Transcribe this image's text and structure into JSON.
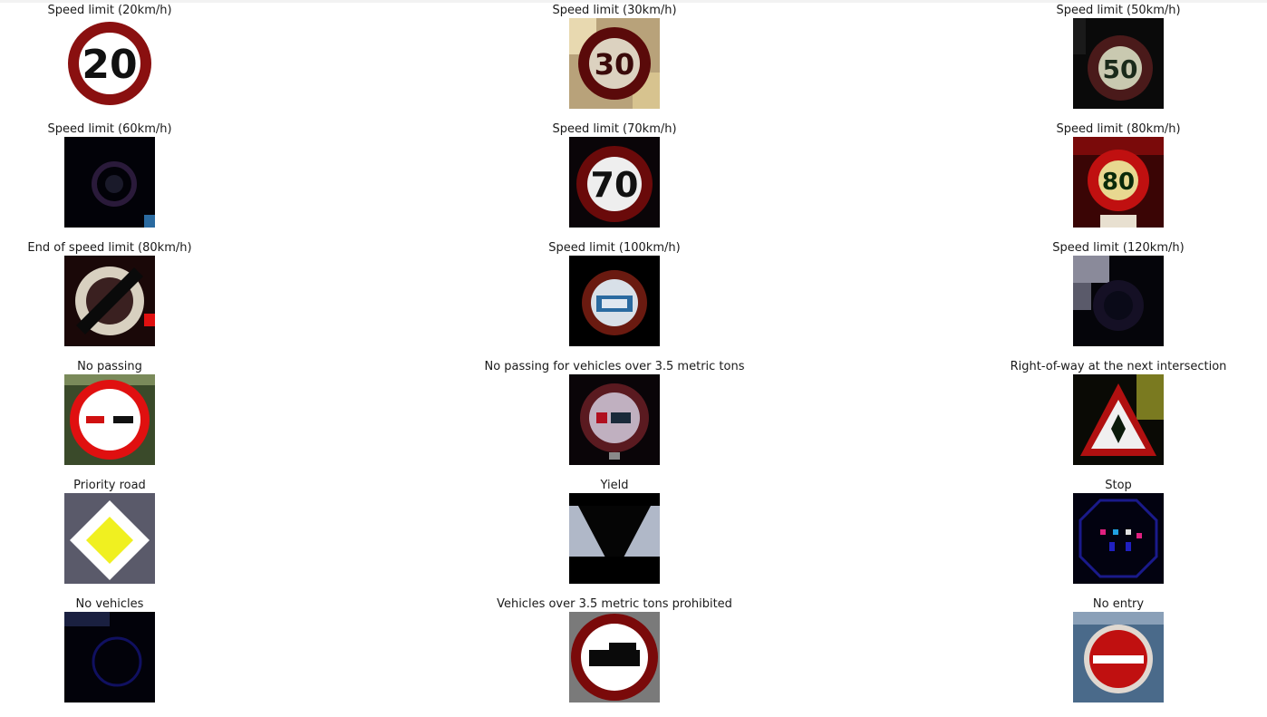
{
  "samples": [
    {
      "label": "Speed limit (20km/h)",
      "icon": "speed-limit-20-sign-icon",
      "sign_text": "20"
    },
    {
      "label": "Speed limit (30km/h)",
      "icon": "speed-limit-30-sign-icon",
      "sign_text": "30"
    },
    {
      "label": "Speed limit (50km/h)",
      "icon": "speed-limit-50-sign-icon",
      "sign_text": "50"
    },
    {
      "label": "Speed limit (60km/h)",
      "icon": "speed-limit-60-sign-icon",
      "sign_text": ""
    },
    {
      "label": "Speed limit (70km/h)",
      "icon": "speed-limit-70-sign-icon",
      "sign_text": "70"
    },
    {
      "label": "Speed limit (80km/h)",
      "icon": "speed-limit-80-sign-icon",
      "sign_text": "80"
    },
    {
      "label": "End of speed limit (80km/h)",
      "icon": "end-speed-limit-80-sign-icon",
      "sign_text": ""
    },
    {
      "label": "Speed limit (100km/h)",
      "icon": "speed-limit-100-sign-icon",
      "sign_text": ""
    },
    {
      "label": "Speed limit (120km/h)",
      "icon": "speed-limit-120-sign-icon",
      "sign_text": ""
    },
    {
      "label": "No passing",
      "icon": "no-passing-sign-icon",
      "sign_text": ""
    },
    {
      "label": "No passing for vehicles over 3.5 metric tons",
      "icon": "no-passing-trucks-sign-icon",
      "sign_text": ""
    },
    {
      "label": "Right-of-way at the next intersection",
      "icon": "right-of-way-sign-icon",
      "sign_text": ""
    },
    {
      "label": "Priority road",
      "icon": "priority-road-sign-icon",
      "sign_text": ""
    },
    {
      "label": "Yield",
      "icon": "yield-sign-icon",
      "sign_text": ""
    },
    {
      "label": "Stop",
      "icon": "stop-sign-icon",
      "sign_text": ""
    },
    {
      "label": "No vehicles",
      "icon": "no-vehicles-sign-icon",
      "sign_text": ""
    },
    {
      "label": "Vehicles over 3.5 metric tons prohibited",
      "icon": "trucks-prohibited-sign-icon",
      "sign_text": ""
    },
    {
      "label": "No entry",
      "icon": "no-entry-sign-icon",
      "sign_text": ""
    }
  ]
}
